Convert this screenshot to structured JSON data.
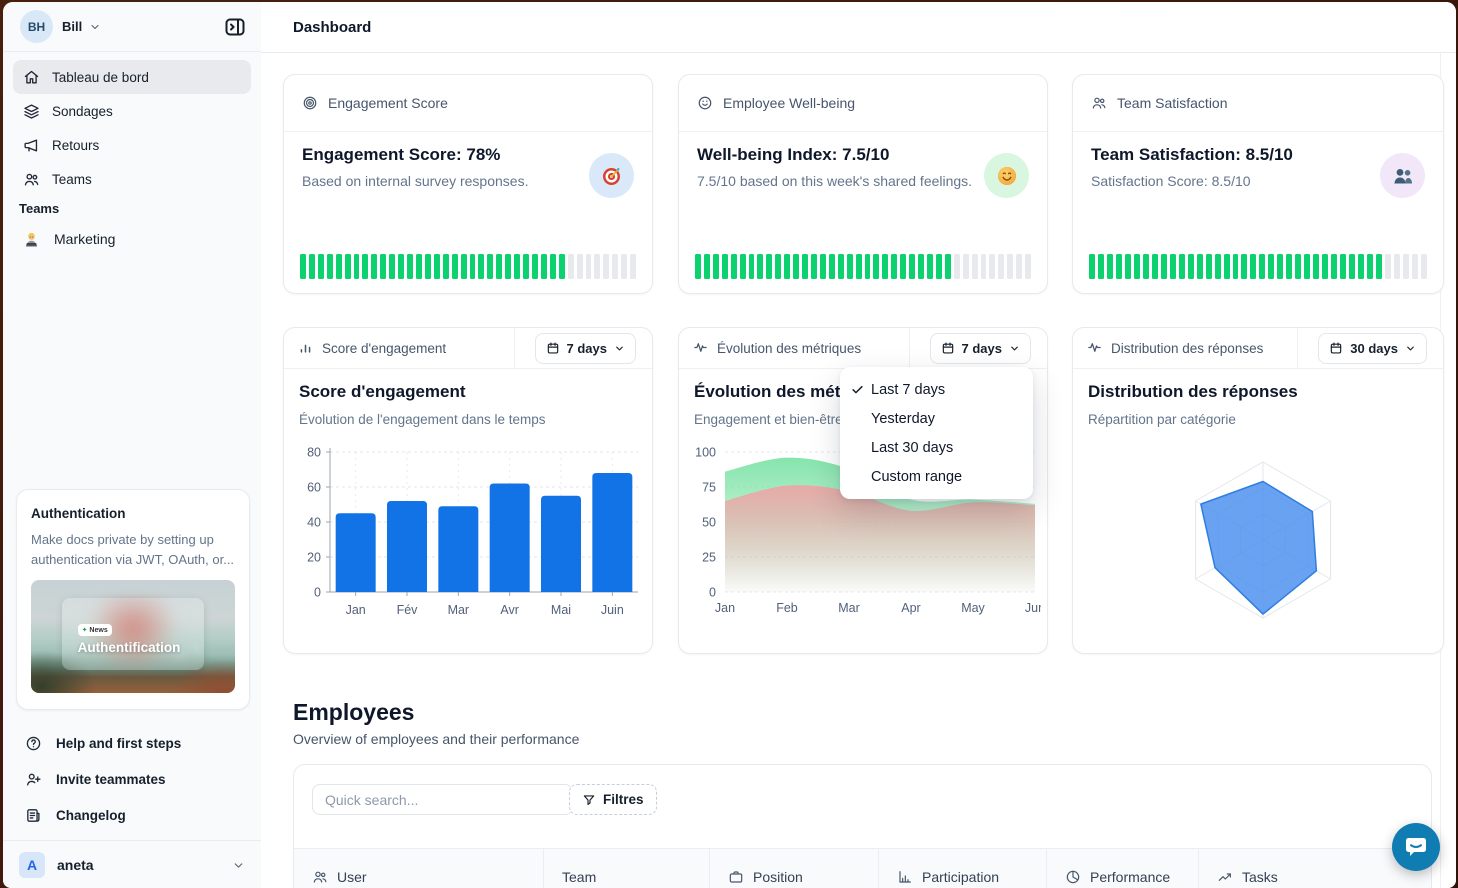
{
  "header": {
    "title": "Dashboard"
  },
  "sidebar": {
    "user": {
      "initials": "BH",
      "name": "Bill"
    },
    "nav": [
      {
        "label": "Tableau de bord",
        "icon": "home-icon",
        "active": true
      },
      {
        "label": "Sondages",
        "icon": "layers-icon",
        "active": false
      },
      {
        "label": "Retours",
        "icon": "megaphone-icon",
        "active": false
      },
      {
        "label": "Teams",
        "icon": "people-icon",
        "active": false
      }
    ],
    "teams_section": {
      "label": "Teams",
      "items": [
        {
          "label": "Marketing",
          "icon": "technologist-emoji"
        }
      ]
    },
    "promo_card": {
      "title": "Authentication",
      "body": "Make docs private by setting up authentication via JWT, OAuth, or...",
      "image_badge": "News",
      "image_title": "Authentification"
    },
    "footer": [
      {
        "label": "Help and first steps",
        "icon": "help-icon"
      },
      {
        "label": "Invite teammates",
        "icon": "person-plus-icon"
      },
      {
        "label": "Changelog",
        "icon": "changelog-icon"
      }
    ],
    "workspace": {
      "initial": "A",
      "name": "aneta"
    }
  },
  "stat_cards": [
    {
      "header": "Engagement Score",
      "header_icon": "target-icon",
      "title": "Engagement Score: 78%",
      "subtitle": "Based on internal survey responses.",
      "emoji": "🎯",
      "emoji_icon": "dart-target-emoji",
      "emoji_bg": "#d9e9f9",
      "progress": 0.78
    },
    {
      "header": "Employee Well-being",
      "header_icon": "smiley-icon",
      "title": "Well-being Index: 7.5/10",
      "subtitle": "7.5/10 based on this week's shared feelings.",
      "emoji": "😊",
      "emoji_icon": "smiling-face-emoji",
      "emoji_bg": "#d9f6e1",
      "progress": 0.76
    },
    {
      "header": "Team Satisfaction",
      "header_icon": "people-icon",
      "title": "Team Satisfaction: 8.5/10",
      "subtitle": "Satisfaction Score: 8.5/10",
      "emoji": "👥",
      "emoji_icon": "busts-emoji",
      "emoji_bg": "#f1e7f9",
      "progress": 0.86
    }
  ],
  "chart_cards": [
    {
      "header": "Score d'engagement",
      "header_icon": "bar-chart-icon",
      "range_label": "7 days"
    },
    {
      "header": "Évolution des métriques",
      "header_icon": "activity-icon",
      "range_label": "7 days"
    },
    {
      "header": "Distribution des réponses",
      "header_icon": "activity-icon",
      "range_label": "30 days"
    }
  ],
  "dropdown": {
    "items": [
      {
        "label": "Last 7 days",
        "checked": true
      },
      {
        "label": "Yesterday",
        "checked": false
      },
      {
        "label": "Last 30 days",
        "checked": false
      },
      {
        "label": "Custom range",
        "checked": false
      }
    ]
  },
  "chart_data": [
    {
      "type": "bar",
      "title": "Score d'engagement",
      "subtitle": "Évolution de l'engagement dans le temps",
      "categories": [
        "Jan",
        "Fév",
        "Mar",
        "Avr",
        "Mai",
        "Juin"
      ],
      "values": [
        45,
        52,
        49,
        62,
        55,
        68
      ],
      "ylim": [
        0,
        80
      ],
      "yticks": [
        0,
        20,
        40,
        60,
        80
      ],
      "bar_color": "#1273e6",
      "grid": "dashed"
    },
    {
      "type": "area",
      "title": "Évolution des métriques",
      "subtitle": "Engagement et bien-être",
      "categories": [
        "Jan",
        "Feb",
        "Mar",
        "Apr",
        "May",
        "Jun"
      ],
      "series": [
        {
          "name": "engagement",
          "color": "#7fe3a8",
          "values": [
            86,
            96,
            88,
            66,
            66,
            63
          ]
        },
        {
          "name": "bien-être",
          "color": "#eca6a6",
          "values": [
            65,
            76,
            72,
            58,
            64,
            62
          ]
        }
      ],
      "ylim": [
        0,
        100
      ],
      "yticks": [
        0,
        25,
        50,
        75,
        100
      ],
      "grid": "dashed"
    },
    {
      "type": "radar",
      "title": "Distribution des réponses",
      "subtitle": "Répartition par catégorie",
      "axes_count": 6,
      "values_fraction_of_max": [
        0.75,
        0.73,
        0.79,
        0.95,
        0.71,
        0.92
      ],
      "fill_color": "#4d92ef",
      "stroke_color": "#2f7de1",
      "grid_levels": 3
    }
  ],
  "employees": {
    "title": "Employees",
    "subtitle": "Overview of employees and their performance",
    "search_placeholder": "Quick search...",
    "filter_label": "Filtres",
    "columns": [
      {
        "label": "User",
        "icon": "people-icon"
      },
      {
        "label": "Team",
        "icon": ""
      },
      {
        "label": "Position",
        "icon": "briefcase-icon"
      },
      {
        "label": "Participation",
        "icon": "bar-axis-icon"
      },
      {
        "label": "Performance",
        "icon": "pie-chart-icon"
      },
      {
        "label": "Tasks",
        "icon": "trend-up-icon"
      }
    ]
  },
  "colors": {
    "progress_green": "#0bd16e",
    "bar_blue": "#1273e6",
    "radar_blue": "#4d92ef",
    "chat_blue": "#0f7cb2",
    "sidebar_bg": "#f9fafb"
  },
  "chat": {
    "icon": "chat-bubble-icon"
  }
}
